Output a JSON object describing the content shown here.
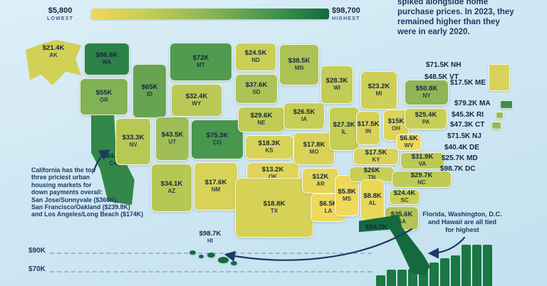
{
  "legend": {
    "min_value": "$5,800",
    "min_label": "LOWEST",
    "max_value": "$98,700",
    "max_label": "HIGHEST",
    "gradient_stops": [
      [
        0,
        "#EFD95B"
      ],
      [
        0.25,
        "#C2CC55"
      ],
      [
        0.5,
        "#8BB456"
      ],
      [
        0.72,
        "#4F9A50"
      ],
      [
        0.88,
        "#2B8147"
      ],
      [
        1,
        "#136A3C"
      ]
    ]
  },
  "colors": {
    "background": "#cfe7f3",
    "text": "#1d3a66",
    "bar": "#1B7743"
  },
  "intro": {
    "text": "spiked alongside home\npurchase prices. In 2023, they\nremained higher than they\nwere in early 2020."
  },
  "annotations": {
    "california": "California has the top\nthree priciest urban\nhousing markets for\ndown payments overall:\nSan Jose/Sunnyvale ($360K),\nSan Francisco/Oakland ($239.8K)\nand Los Angeles/Long Beach ($174K)",
    "highest": "Florida, Washington, D.C.\nand Hawaii are all tied\nfor highest"
  },
  "chart_data": [
    {
      "type": "heatmap",
      "subtype": "us-choropleth",
      "title": "",
      "unit": "USD, K = thousand",
      "color_scale": {
        "min_value": 5800,
        "max_value": 98700,
        "min_label": "$5,800 LOWEST",
        "max_label": "$98,700 HIGHEST"
      },
      "points": [
        {
          "state": "AK",
          "label": "$21.4K",
          "value": 21.4
        },
        {
          "state": "WA",
          "label": "$86.8K",
          "value": 86.8
        },
        {
          "state": "OR",
          "label": "$55K",
          "value": 55
        },
        {
          "state": "CA",
          "label": "$84.2K",
          "value": 84.2
        },
        {
          "state": "ID",
          "label": "$65K",
          "value": 65
        },
        {
          "state": "NV",
          "label": "$33.3K",
          "value": 33.3
        },
        {
          "state": "UT",
          "label": "$43.5K",
          "value": 43.5
        },
        {
          "state": "AZ",
          "label": "$34.1K",
          "value": 34.1
        },
        {
          "state": "MT",
          "label": "$72K",
          "value": 72
        },
        {
          "state": "WY",
          "label": "$32.4K",
          "value": 32.4
        },
        {
          "state": "CO",
          "label": "$75.3K",
          "value": 75.3
        },
        {
          "state": "NM",
          "label": "$17.6K",
          "value": 17.6
        },
        {
          "state": "ND",
          "label": "$24.5K",
          "value": 24.5
        },
        {
          "state": "SD",
          "label": "$37.6K",
          "value": 37.6
        },
        {
          "state": "NE",
          "label": "$29.6K",
          "value": 29.6
        },
        {
          "state": "KS",
          "label": "$18.3K",
          "value": 18.3
        },
        {
          "state": "OK",
          "label": "$13.2K",
          "value": 13.2
        },
        {
          "state": "TX",
          "label": "$18.8K",
          "value": 18.8
        },
        {
          "state": "MN",
          "label": "$38.5K",
          "value": 38.5
        },
        {
          "state": "IA",
          "label": "$26.5K",
          "value": 26.5
        },
        {
          "state": "MO",
          "label": "$17.8K",
          "value": 17.8
        },
        {
          "state": "AR",
          "label": "$12K",
          "value": 12
        },
        {
          "state": "LA",
          "label": "$6.5K",
          "value": 6.5
        },
        {
          "state": "WI",
          "label": "$28.3K",
          "value": 28.3
        },
        {
          "state": "IL",
          "label": "$27.3K",
          "value": 27.3
        },
        {
          "state": "MS",
          "label": "$5.8K",
          "value": 5.8
        },
        {
          "state": "MI",
          "label": "$23.2K",
          "value": 23.2
        },
        {
          "state": "IN",
          "label": "$17.5K",
          "value": 17.5
        },
        {
          "state": "OH",
          "label": "$15K",
          "value": 15
        },
        {
          "state": "KY",
          "label": "$17.5K",
          "value": 17.5
        },
        {
          "state": "TN",
          "label": "$26K",
          "value": 26
        },
        {
          "state": "WV",
          "label": "$6.6K",
          "value": 6.6
        },
        {
          "state": "VA",
          "label": "$31.9K",
          "value": 31.9
        },
        {
          "state": "NC",
          "label": "$29.7K",
          "value": 29.7
        },
        {
          "state": "SC",
          "label": "$24.4K",
          "value": 24.4
        },
        {
          "state": "GA",
          "label": "$35.6K",
          "value": 35.6
        },
        {
          "state": "AL",
          "label": "$8.8K",
          "value": 8.8
        },
        {
          "state": "FL",
          "label": "$98.7K",
          "value": 98.7
        },
        {
          "state": "NY",
          "label": "$50.8K",
          "value": 50.8
        },
        {
          "state": "PA",
          "label": "$25.4K",
          "value": 25.4
        },
        {
          "state": "NH",
          "label": "$71.5K",
          "value": 71.5
        },
        {
          "state": "VT",
          "label": "$48.5K",
          "value": 48.5
        },
        {
          "state": "ME",
          "label": "$17.5K",
          "value": 17.5
        },
        {
          "state": "MA",
          "label": "$79.2K",
          "value": 79.2
        },
        {
          "state": "RI",
          "label": "$45.3K",
          "value": 45.3
        },
        {
          "state": "CT",
          "label": "$47.3K",
          "value": 47.3
        },
        {
          "state": "NJ",
          "label": "$71.5K",
          "value": 71.5
        },
        {
          "state": "DE",
          "label": "$40.4K",
          "value": 40.4
        },
        {
          "state": "MD",
          "label": "$25.7K",
          "value": 25.7
        },
        {
          "state": "DC",
          "label": "$98.7K",
          "value": 98.7
        },
        {
          "state": "HI",
          "label": "$98.7K",
          "value": 98.7
        }
      ]
    },
    {
      "type": "bar",
      "title": "",
      "y_ticks": [
        "$90K",
        "$70K"
      ],
      "values": [
        65,
        71.5,
        71.5,
        72,
        75.3,
        79.2,
        84.2,
        86.8,
        98.7,
        98.7,
        98.7
      ],
      "note": "bar chart cropped at bottom edge of image; values estimated from $70K/$90K gridlines"
    }
  ]
}
